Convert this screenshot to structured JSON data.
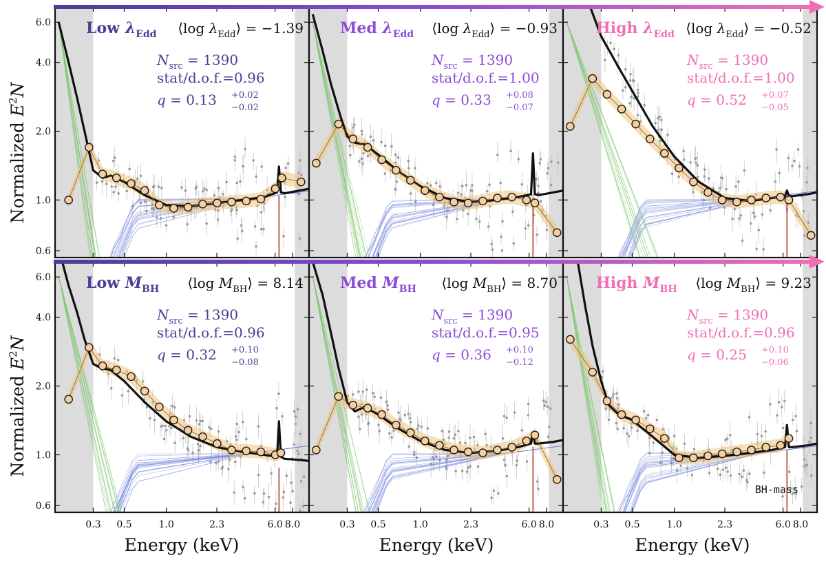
{
  "figure": {
    "ylabel_prefix": "Normalized ",
    "ylabel_E": "E",
    "ylabel_exp": "2",
    "ylabel_N": "N",
    "xlabel": "Energy (keV)",
    "xticks": [
      0.3,
      0.5,
      1.0,
      2.3,
      6.0,
      8.0
    ],
    "xtick_labels": [
      "0.3",
      "0.5",
      "1.0",
      "2.3",
      "6.0",
      "8.0"
    ],
    "yticks": [
      0.6,
      1.0,
      2.0,
      4.0,
      6.0
    ],
    "ytick_labels": [
      "0.6",
      "1.0",
      "2.0",
      "4.0",
      "6.0"
    ],
    "xlim": [
      0.16,
      10.5
    ],
    "ylim": [
      0.56,
      7.0
    ],
    "shaded_low": [
      0.16,
      0.3
    ],
    "shaded_high": [
      8.3,
      10.5
    ],
    "corner_tag": "BH-mass",
    "colors": {
      "low": "#4b3d96",
      "med": "#8a4cd6",
      "high": "#ef6fb5",
      "stack_point": "#f5cfa0",
      "stack_band": "#f0c47c",
      "model": "#111111",
      "powerlaw": "#6a7bd8",
      "soft": "#7cc76a",
      "line": "#b03a2e"
    }
  },
  "chart_data": [
    {
      "type": "line",
      "row": 0,
      "col": 0,
      "color_key": "low",
      "title_prefix": "Low ",
      "title_sym": "λ",
      "title_sub": "Edd",
      "mean_prefix": "⟨log ",
      "mean_sym": "λ",
      "mean_sub": "Edd",
      "mean_suffix": "⟩ = −1.39",
      "nsrc_sym": "N",
      "nsrc_sub": "src",
      "nsrc_val": " = 1390",
      "stat": "stat/d.o.f.=0.96",
      "q_text": "q = 0.13",
      "q_up": "+0.02",
      "q_lo": "−0.02",
      "series": [
        {
          "name": "stacked",
          "x": [
            0.2,
            0.28,
            0.35,
            0.44,
            0.56,
            0.7,
            0.89,
            1.13,
            1.43,
            1.82,
            2.31,
            2.93,
            3.73,
            4.74,
            6.02,
            6.7,
            9.2
          ],
          "y": [
            1.0,
            1.7,
            1.3,
            1.25,
            1.18,
            1.1,
            0.95,
            0.92,
            0.93,
            0.96,
            0.97,
            0.98,
            0.99,
            1.01,
            1.12,
            1.25,
            1.2
          ]
        },
        {
          "name": "model",
          "x": [
            0.17,
            0.2,
            0.23,
            0.26,
            0.3,
            0.35,
            0.4,
            0.5,
            0.7,
            1.0,
            1.5,
            2.3,
            3.5,
            5.0,
            6.2,
            6.4,
            6.6,
            7.0,
            9.0,
            10.5
          ],
          "y": [
            6.0,
            4.0,
            2.8,
            2.0,
            1.35,
            1.25,
            1.28,
            1.2,
            1.05,
            0.95,
            0.94,
            0.97,
            1.0,
            1.03,
            1.08,
            1.4,
            1.08,
            1.07,
            1.1,
            1.12
          ]
        }
      ]
    },
    {
      "type": "line",
      "row": 0,
      "col": 1,
      "color_key": "med",
      "title_prefix": "Med ",
      "title_sym": "λ",
      "title_sub": "Edd",
      "mean_prefix": "⟨log ",
      "mean_sym": "λ",
      "mean_sub": "Edd",
      "mean_suffix": "⟩ = −0.93",
      "nsrc_sym": "N",
      "nsrc_sub": "src",
      "nsrc_val": " = 1390",
      "stat": "stat/d.o.f.=1.00",
      "q_text": "q = 0.33",
      "q_up": "+0.08",
      "q_lo": "−0.07",
      "series": [
        {
          "name": "stacked",
          "x": [
            0.18,
            0.26,
            0.33,
            0.42,
            0.53,
            0.67,
            0.85,
            1.08,
            1.37,
            1.74,
            2.2,
            2.8,
            3.56,
            4.52,
            5.75,
            6.6,
            9.5
          ],
          "y": [
            1.45,
            2.15,
            1.85,
            1.7,
            1.5,
            1.35,
            1.22,
            1.1,
            1.03,
            0.98,
            0.97,
            0.99,
            1.02,
            1.03,
            1.0,
            0.97,
            0.72
          ]
        },
        {
          "name": "model",
          "x": [
            0.17,
            0.2,
            0.23,
            0.27,
            0.3,
            0.34,
            0.4,
            0.5,
            0.7,
            1.0,
            1.5,
            2.3,
            3.5,
            5.0,
            6.2,
            6.4,
            6.6,
            7.0,
            9.0,
            10.5
          ],
          "y": [
            6.5,
            4.5,
            3.2,
            2.3,
            1.9,
            1.78,
            1.75,
            1.58,
            1.33,
            1.15,
            1.02,
            0.98,
            1.0,
            1.03,
            1.06,
            1.6,
            1.06,
            1.05,
            1.08,
            1.1
          ]
        }
      ]
    },
    {
      "type": "line",
      "row": 0,
      "col": 2,
      "color_key": "high",
      "title_prefix": "High ",
      "title_sym": "λ",
      "title_sub": "Edd",
      "mean_prefix": "⟨log ",
      "mean_sym": "λ",
      "mean_sub": "Edd",
      "mean_suffix": "⟩ = −0.52",
      "nsrc_sym": "N",
      "nsrc_sub": "src",
      "nsrc_val": " = 1390",
      "stat": "stat/d.o.f.=1.00",
      "q_text": "q = 0.52",
      "q_up": "+0.07",
      "q_lo": "−0.05",
      "series": [
        {
          "name": "stacked",
          "x": [
            0.18,
            0.26,
            0.33,
            0.42,
            0.53,
            0.67,
            0.85,
            1.08,
            1.37,
            1.74,
            2.2,
            2.8,
            3.56,
            4.52,
            5.75,
            6.6,
            9.5
          ],
          "y": [
            2.1,
            3.4,
            2.9,
            2.5,
            2.15,
            1.85,
            1.6,
            1.38,
            1.2,
            1.08,
            1.0,
            0.98,
            1.0,
            1.02,
            1.03,
            1.0,
            0.7
          ]
        },
        {
          "name": "model",
          "x": [
            0.2,
            0.25,
            0.3,
            0.35,
            0.4,
            0.5,
            0.7,
            1.0,
            1.5,
            2.3,
            3.5,
            5.0,
            6.2,
            6.4,
            6.6,
            7.0,
            9.0,
            10.5
          ],
          "y": [
            10.0,
            7.0,
            5.2,
            4.4,
            3.8,
            3.0,
            2.1,
            1.55,
            1.2,
            1.02,
            0.99,
            1.02,
            1.04,
            1.1,
            1.04,
            1.04,
            1.06,
            1.08
          ]
        }
      ]
    },
    {
      "type": "line",
      "row": 1,
      "col": 0,
      "color_key": "low",
      "title_prefix": "Low ",
      "title_sym": "M",
      "title_sub": "BH",
      "mean_prefix": "⟨log ",
      "mean_sym": "M",
      "mean_sub": "BH",
      "mean_suffix": "⟩ = 8.14",
      "nsrc_sym": "N",
      "nsrc_sub": "src",
      "nsrc_val": " = 1390",
      "stat": "stat/d.o.f.=0.96",
      "q_text": "q = 0.32",
      "q_up": "+0.10",
      "q_lo": "−0.08",
      "series": [
        {
          "name": "stacked",
          "x": [
            0.2,
            0.28,
            0.35,
            0.44,
            0.56,
            0.7,
            0.89,
            1.13,
            1.43,
            1.82,
            2.31,
            2.93,
            3.73,
            4.74,
            6.02,
            6.6
          ],
          "y": [
            1.75,
            2.95,
            2.45,
            2.35,
            2.2,
            1.9,
            1.62,
            1.42,
            1.28,
            1.2,
            1.12,
            1.05,
            1.04,
            1.03,
            1.0,
            1.02
          ]
        },
        {
          "name": "model",
          "x": [
            0.17,
            0.2,
            0.23,
            0.26,
            0.3,
            0.34,
            0.4,
            0.5,
            0.7,
            1.0,
            1.5,
            2.3,
            3.5,
            5.0,
            6.2,
            6.4,
            6.6,
            7.0,
            9.0,
            10.5
          ],
          "y": [
            8.0,
            5.5,
            4.2,
            3.2,
            2.5,
            2.4,
            2.35,
            2.1,
            1.7,
            1.4,
            1.2,
            1.08,
            1.03,
            1.0,
            0.98,
            1.4,
            0.98,
            0.96,
            0.95,
            0.94
          ]
        }
      ]
    },
    {
      "type": "line",
      "row": 1,
      "col": 1,
      "color_key": "med",
      "title_prefix": "Med ",
      "title_sym": "M",
      "title_sub": "BH",
      "mean_prefix": "⟨log ",
      "mean_sym": "M",
      "mean_sub": "BH",
      "mean_suffix": "⟩ = 8.70",
      "nsrc_sym": "N",
      "nsrc_sub": "src",
      "nsrc_val": " = 1390",
      "stat": "stat/d.o.f.=0.95",
      "q_text": "q = 0.36",
      "q_up": "+0.10",
      "q_lo": "−0.12",
      "series": [
        {
          "name": "stacked",
          "x": [
            0.18,
            0.26,
            0.33,
            0.42,
            0.53,
            0.67,
            0.85,
            1.08,
            1.37,
            1.74,
            2.2,
            2.8,
            3.56,
            4.52,
            5.75,
            6.6,
            9.5
          ],
          "y": [
            1.05,
            1.8,
            1.65,
            1.6,
            1.5,
            1.35,
            1.25,
            1.15,
            1.1,
            1.05,
            1.03,
            1.02,
            1.05,
            1.08,
            1.15,
            1.22,
            0.78
          ]
        },
        {
          "name": "model",
          "x": [
            0.17,
            0.2,
            0.23,
            0.26,
            0.3,
            0.34,
            0.4,
            0.5,
            0.7,
            1.0,
            1.5,
            2.3,
            3.5,
            5.0,
            6.2,
            6.4,
            6.6,
            7.0,
            9.0,
            10.5
          ],
          "y": [
            7.0,
            5.0,
            3.4,
            2.4,
            1.7,
            1.55,
            1.62,
            1.5,
            1.3,
            1.15,
            1.05,
            1.02,
            1.04,
            1.08,
            1.12,
            1.25,
            1.12,
            1.12,
            1.14,
            1.16
          ]
        }
      ]
    },
    {
      "type": "line",
      "row": 1,
      "col": 2,
      "color_key": "high",
      "title_prefix": "High ",
      "title_sym": "M",
      "title_sub": "BH",
      "mean_prefix": "⟨log ",
      "mean_sym": "M",
      "mean_sub": "BH",
      "mean_suffix": "⟩ = 9.23",
      "nsrc_sym": "N",
      "nsrc_sub": "src",
      "nsrc_val": " = 1390",
      "stat": "stat/d.o.f.=0.96",
      "q_text": "q = 0.25",
      "q_up": "+0.10",
      "q_lo": "−0.06",
      "series": [
        {
          "name": "stacked",
          "x": [
            0.18,
            0.26,
            0.33,
            0.42,
            0.53,
            0.67,
            0.85,
            1.08,
            1.37,
            1.74,
            2.2,
            2.8,
            3.56,
            4.52,
            5.75,
            6.6
          ],
          "y": [
            3.2,
            2.3,
            1.72,
            1.5,
            1.42,
            1.3,
            1.18,
            0.97,
            0.97,
            0.99,
            1.01,
            1.03,
            1.05,
            1.08,
            1.1,
            1.18
          ]
        },
        {
          "name": "model",
          "x": [
            0.17,
            0.2,
            0.23,
            0.26,
            0.3,
            0.34,
            0.4,
            0.5,
            0.7,
            1.0,
            1.5,
            2.3,
            3.5,
            5.0,
            6.2,
            6.4,
            6.6,
            7.0,
            9.0,
            10.5
          ],
          "y": [
            10.0,
            7.5,
            4.5,
            3.0,
            2.1,
            1.65,
            1.5,
            1.42,
            1.2,
            1.0,
            0.97,
            0.99,
            1.02,
            1.05,
            1.08,
            1.35,
            1.08,
            1.08,
            1.1,
            1.12
          ]
        }
      ]
    }
  ]
}
